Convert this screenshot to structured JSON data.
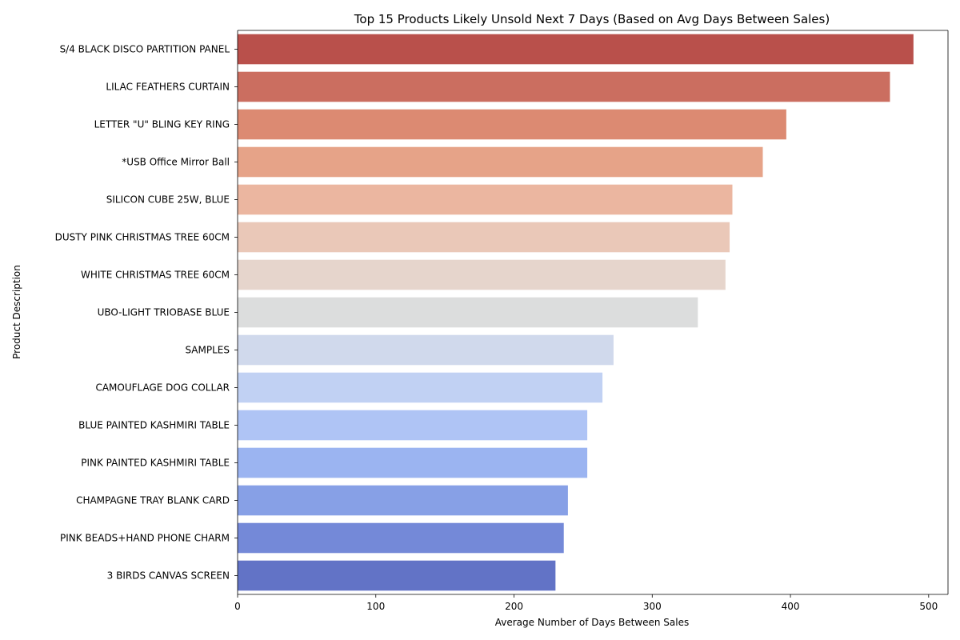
{
  "chart_data": {
    "type": "bar",
    "orientation": "horizontal",
    "title": "Top 15 Products Likely Unsold Next 7 Days (Based on Avg Days Between Sales)",
    "xlabel": "Average Number of Days Between Sales",
    "ylabel": "Product Description",
    "xlim": [
      0,
      514
    ],
    "xticks": [
      0,
      100,
      200,
      300,
      400,
      500
    ],
    "grid": false,
    "palette": "coolwarm (reversed)",
    "categories": [
      "S/4 BLACK DISCO PARTITION PANEL",
      "LILAC FEATHERS CURTAIN",
      "LETTER \"U\" BLING KEY RING",
      "*USB Office Mirror Ball",
      "SILICON CUBE 25W, BLUE",
      "DUSTY PINK CHRISTMAS TREE 60CM",
      "WHITE CHRISTMAS TREE 60CM",
      "UBO-LIGHT TRIOBASE BLUE",
      "SAMPLES",
      "CAMOUFLAGE DOG COLLAR",
      "BLUE PAINTED KASHMIRI TABLE ",
      "PINK PAINTED KASHMIRI TABLE",
      "CHAMPAGNE TRAY BLANK CARD",
      "PINK BEADS+HAND PHONE CHARM",
      "3 BIRDS CANVAS SCREEN"
    ],
    "values": [
      489,
      472,
      397,
      380,
      358,
      356,
      353,
      333,
      272,
      264,
      253,
      253,
      239,
      236,
      230
    ],
    "colors": [
      "#b9504b",
      "#cb6e60",
      "#dc8a72",
      "#e6a388",
      "#ebb6a0",
      "#eac8b8",
      "#e6d5cc",
      "#dcdddd",
      "#d0d9ec",
      "#c1d1f3",
      "#afc4f5",
      "#9bb4f1",
      "#87a0e6",
      "#7489d8",
      "#6273c6"
    ]
  }
}
